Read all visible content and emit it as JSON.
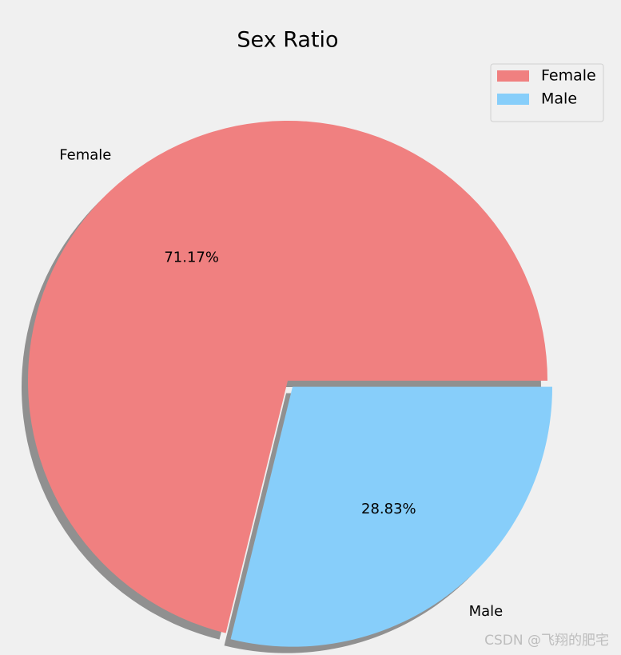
{
  "chart_data": {
    "type": "pie",
    "title": "Sex Ratio",
    "categories": [
      "Female",
      "Male"
    ],
    "values": [
      71.17,
      28.83
    ],
    "value_labels": [
      "71.17%",
      "28.83%"
    ],
    "colors": [
      "#f08080",
      "#87cefa"
    ],
    "explode": [
      0,
      0.03
    ],
    "shadow": true,
    "legend": "upper right",
    "watermark": "CSDN @飞翔的肥宅"
  }
}
